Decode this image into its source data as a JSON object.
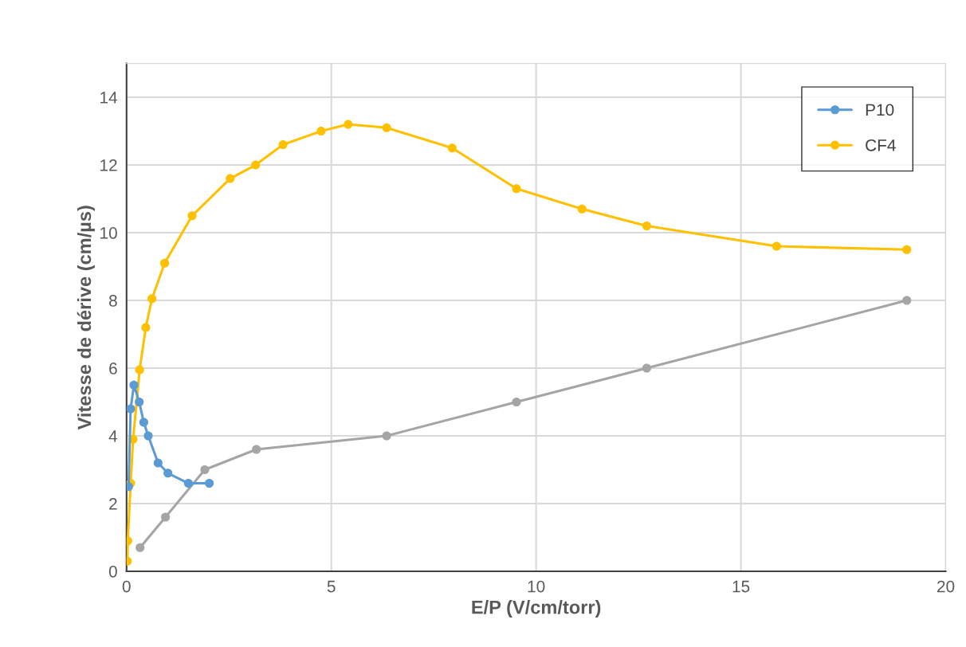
{
  "chart_data": {
    "type": "line",
    "xlabel": "E/P (V/cm/torr)",
    "ylabel": "Vitesse de dérive (cm/µs)",
    "xlim": [
      0,
      20
    ],
    "xticks": [
      0,
      5,
      10,
      15,
      20
    ],
    "ylim": [
      0,
      15
    ],
    "yticks": [
      0,
      2,
      4,
      6,
      8,
      10,
      12,
      14
    ],
    "grid": true,
    "legend": "top right",
    "marker": "circle",
    "line_style": "solid",
    "series": [
      {
        "name": "P10",
        "color": "#5b9bd5",
        "x": [
          0.05,
          0.1,
          0.18,
          0.31,
          0.42,
          0.53,
          0.77,
          1.01,
          1.51,
          2.02
        ],
        "values": [
          2.5,
          4.8,
          5.5,
          5.0,
          4.4,
          4.0,
          3.2,
          2.9,
          2.6,
          2.6
        ]
      },
      {
        "name": "CF4",
        "color": "#ffc000",
        "x": [
          0.02,
          0.03,
          0.1,
          0.16,
          0.32,
          0.47,
          0.62,
          0.93,
          1.6,
          2.53,
          3.15,
          3.82,
          4.75,
          5.41,
          6.35,
          7.95,
          9.52,
          11.12,
          12.7,
          15.87,
          19.05
        ],
        "values": [
          0.3,
          0.9,
          2.6,
          3.9,
          5.95,
          7.2,
          8.05,
          9.1,
          10.5,
          11.6,
          12.0,
          12.6,
          13.0,
          13.2,
          13.1,
          12.5,
          11.3,
          10.7,
          10.2,
          9.6,
          9.5
        ]
      },
      {
        "color": "#a5a5a5",
        "x": [
          0.33,
          0.95,
          1.91,
          3.17,
          6.35,
          9.52,
          12.7,
          19.05
        ],
        "values": [
          0.7,
          1.6,
          3.0,
          3.6,
          4.0,
          5.0,
          6.0,
          8.0
        ]
      }
    ]
  }
}
